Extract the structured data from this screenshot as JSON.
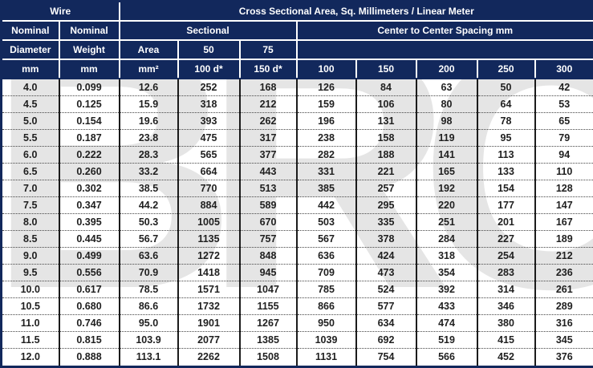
{
  "watermark": "BRC",
  "colors": {
    "header_bg": "#12285c",
    "header_text": "#ffffff",
    "data_text": "#1f1f1f",
    "column_divider": "#1b1b1b",
    "watermark_gray": "#e5e5e5"
  },
  "table": {
    "header": {
      "wire": "Wire",
      "cross_sectional": "Cross Sectional Area, Sq. Millimeters / Linear Meter",
      "nominal_diameter": "Nominal",
      "nominal_weight": "Nominal",
      "sectional": "Sectional",
      "center_spacing": "Center to Center Spacing mm",
      "diameter": "Diameter",
      "weight": "Weight",
      "area": "Area",
      "col_50": "50",
      "col_75": "75",
      "mm_diameter": "mm",
      "mm_weight": "mm",
      "mm2": "mm²",
      "d100": "100 d*",
      "d150": "150 d*",
      "spacing_cols": [
        "100",
        "150",
        "200",
        "250",
        "300"
      ]
    },
    "rows": [
      [
        "4.0",
        "0.099",
        "12.6",
        "252",
        "168",
        "126",
        "84",
        "63",
        "50",
        "42"
      ],
      [
        "4.5",
        "0.125",
        "15.9",
        "318",
        "212",
        "159",
        "106",
        "80",
        "64",
        "53"
      ],
      [
        "5.0",
        "0.154",
        "19.6",
        "393",
        "262",
        "196",
        "131",
        "98",
        "78",
        "65"
      ],
      [
        "5.5",
        "0.187",
        "23.8",
        "475",
        "317",
        "238",
        "158",
        "119",
        "95",
        "79"
      ],
      [
        "6.0",
        "0.222",
        "28.3",
        "565",
        "377",
        "282",
        "188",
        "141",
        "113",
        "94"
      ],
      [
        "6.5",
        "0.260",
        "33.2",
        "664",
        "443",
        "331",
        "221",
        "165",
        "133",
        "110"
      ],
      [
        "7.0",
        "0.302",
        "38.5",
        "770",
        "513",
        "385",
        "257",
        "192",
        "154",
        "128"
      ],
      [
        "7.5",
        "0.347",
        "44.2",
        "884",
        "589",
        "442",
        "295",
        "220",
        "177",
        "147"
      ],
      [
        "8.0",
        "0.395",
        "50.3",
        "1005",
        "670",
        "503",
        "335",
        "251",
        "201",
        "167"
      ],
      [
        "8.5",
        "0.445",
        "56.7",
        "1135",
        "757",
        "567",
        "378",
        "284",
        "227",
        "189"
      ],
      [
        "9.0",
        "0.499",
        "63.6",
        "1272",
        "848",
        "636",
        "424",
        "318",
        "254",
        "212"
      ],
      [
        "9.5",
        "0.556",
        "70.9",
        "1418",
        "945",
        "709",
        "473",
        "354",
        "283",
        "236"
      ],
      [
        "10.0",
        "0.617",
        "78.5",
        "1571",
        "1047",
        "785",
        "524",
        "392",
        "314",
        "261"
      ],
      [
        "10.5",
        "0.680",
        "86.6",
        "1732",
        "1155",
        "866",
        "577",
        "433",
        "346",
        "289"
      ],
      [
        "11.0",
        "0.746",
        "95.0",
        "1901",
        "1267",
        "950",
        "634",
        "474",
        "380",
        "316"
      ],
      [
        "11.5",
        "0.815",
        "103.9",
        "2077",
        "1385",
        "1039",
        "692",
        "519",
        "415",
        "345"
      ],
      [
        "12.0",
        "0.888",
        "113.1",
        "2262",
        "1508",
        "1131",
        "754",
        "566",
        "452",
        "376"
      ]
    ]
  }
}
